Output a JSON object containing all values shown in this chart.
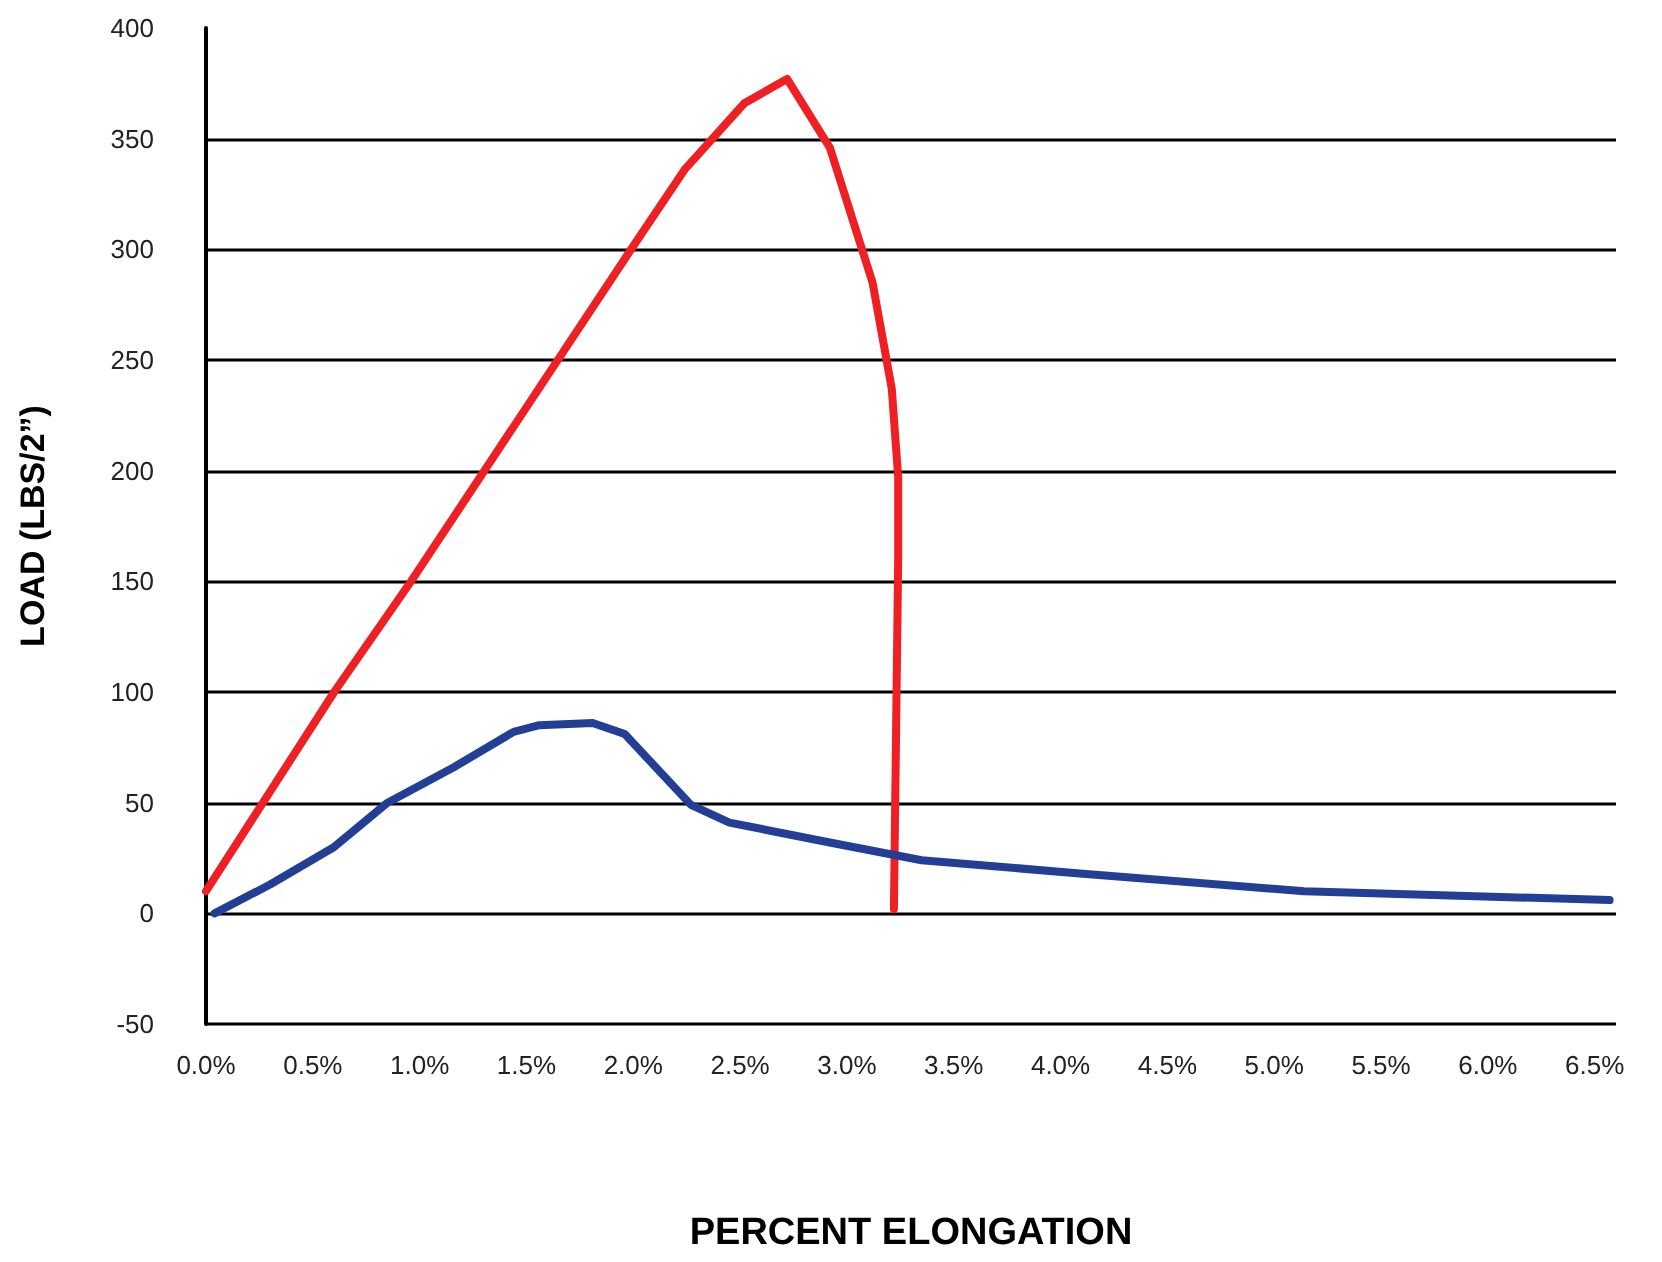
{
  "chart_data": {
    "type": "line",
    "xlabel": "PERCENT ELONGATION",
    "ylabel": "LOAD (LBS/2”)",
    "xlim": [
      0,
      6.6
    ],
    "ylim": [
      -50,
      400
    ],
    "xticks": [
      {
        "value": 0,
        "label": "0.0%"
      },
      {
        "value": 0.5,
        "label": "0.5%"
      },
      {
        "value": 1,
        "label": "1.0%"
      },
      {
        "value": 1.5,
        "label": "1.5%"
      },
      {
        "value": 2,
        "label": "2.0%"
      },
      {
        "value": 2.5,
        "label": "2.5%"
      },
      {
        "value": 3,
        "label": "3.0%"
      },
      {
        "value": 3.5,
        "label": "3.5%"
      },
      {
        "value": 4,
        "label": "4.0%"
      },
      {
        "value": 4.5,
        "label": "4.5%"
      },
      {
        "value": 5,
        "label": "5.0%"
      },
      {
        "value": 5.5,
        "label": "5.5%"
      },
      {
        "value": 6,
        "label": "6.0%"
      },
      {
        "value": 6.5,
        "label": "6.5%"
      }
    ],
    "yticks": [
      -50,
      0,
      50,
      100,
      150,
      200,
      250,
      300,
      350,
      400
    ],
    "grid": "y",
    "marker": "none",
    "line_style": "solid",
    "series": [
      {
        "color": "#ee2024",
        "x": [
          0,
          0.6,
          0.96,
          1.99,
          2.24,
          2.52,
          2.72,
          2.92,
          3.12,
          3.21,
          3.24,
          3.24,
          3.22
        ],
        "values": [
          10,
          100,
          150,
          300,
          336,
          366,
          377,
          346,
          285,
          237,
          197,
          160,
          2
        ]
      },
      {
        "color": "#233f95",
        "x": [
          0.04,
          0.3,
          0.6,
          0.85,
          1.16,
          1.44,
          1.56,
          1.81,
          1.96,
          2.27,
          2.45,
          2.92,
          3.35,
          4.09,
          5.14,
          6.57
        ],
        "values": [
          0,
          13,
          30,
          50,
          66,
          82,
          85,
          86,
          81,
          49,
          41,
          32,
          24,
          18,
          10,
          6
        ]
      }
    ]
  }
}
